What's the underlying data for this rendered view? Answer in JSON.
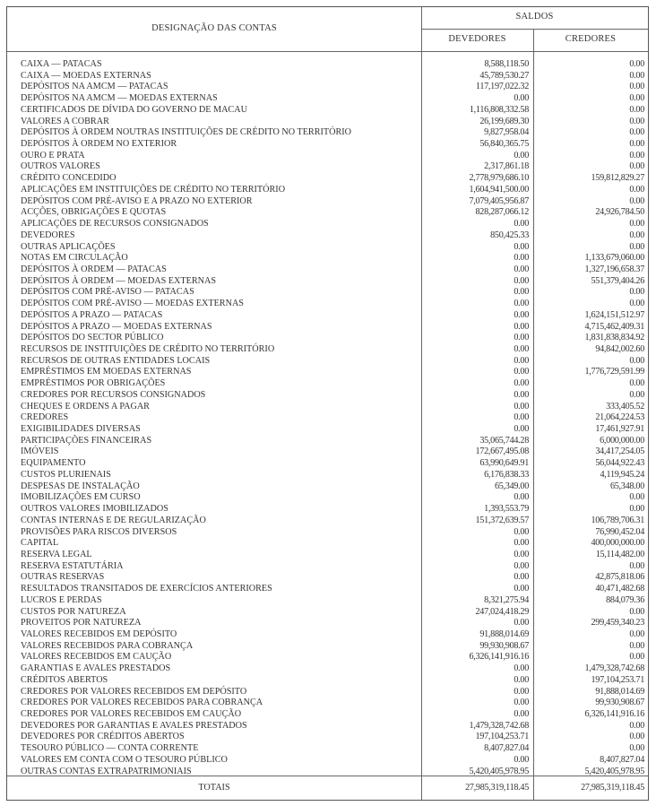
{
  "header": {
    "designation": "DESIGNAÇÃO DAS CONTAS",
    "saldos": "SALDOS",
    "devedores": "DEVEDORES",
    "credores": "CREDORES"
  },
  "rows": [
    {
      "name": "CAIXA — PATACAS",
      "dev": "8,588,118.50",
      "cre": "0.00"
    },
    {
      "name": "CAIXA — MOEDAS EXTERNAS",
      "dev": "45,789,530.27",
      "cre": "0.00"
    },
    {
      "name": "DEPÓSITOS NA AMCM — PATACAS",
      "dev": "117,197,022.32",
      "cre": "0.00"
    },
    {
      "name": "DEPÓSITOS NA AMCM — MOEDAS EXTERNAS",
      "dev": "0.00",
      "cre": "0.00"
    },
    {
      "name": "CERTIFICADOS DE DÍVIDA DO GOVERNO DE MACAU",
      "dev": "1,116,808,332.58",
      "cre": "0.00"
    },
    {
      "name": "VALORES A COBRAR",
      "dev": "26,199,689.30",
      "cre": "0.00"
    },
    {
      "name": "DEPÓSITOS À ORDEM NOUTRAS INSTITUIÇÕES DE CRÉDITO NO TERRITÓRIO",
      "dev": "9,827,958.04",
      "cre": "0.00"
    },
    {
      "name": "DEPÓSITOS À ORDEM NO EXTERIOR",
      "dev": "56,840,365.75",
      "cre": "0.00"
    },
    {
      "name": "OURO E PRATA",
      "dev": "0.00",
      "cre": "0.00"
    },
    {
      "name": "OUTROS VALORES",
      "dev": "2,317,861.18",
      "cre": "0.00"
    },
    {
      "name": "CRÉDITO CONCEDIDO",
      "dev": "2,778,979,686.10",
      "cre": "159,812,829.27"
    },
    {
      "name": "APLICAÇÕES EM INSTITUIÇÕES DE CRÉDITO NO TERRITÓRIO",
      "dev": "1,604,941,500.00",
      "cre": "0.00"
    },
    {
      "name": "DEPÓSITOS COM PRÉ-AVISO E A PRAZO NO EXTERIOR",
      "dev": "7,079,405,956.87",
      "cre": "0.00"
    },
    {
      "name": "ACÇÕES, OBRIGAÇÕES E QUOTAS",
      "dev": "828,287,066.12",
      "cre": "24,926,784.50"
    },
    {
      "name": "APLICAÇÕES DE RECURSOS CONSIGNADOS",
      "dev": "0.00",
      "cre": "0.00"
    },
    {
      "name": "DEVEDORES",
      "dev": "850,425.33",
      "cre": "0.00"
    },
    {
      "name": "OUTRAS APLICAÇÕES",
      "dev": "0.00",
      "cre": "0.00"
    },
    {
      "name": "NOTAS EM CIRCULAÇÃO",
      "dev": "0.00",
      "cre": "1,133,679,060.00"
    },
    {
      "name": "DEPÓSITOS À ORDEM — PATACAS",
      "dev": "0.00",
      "cre": "1,327,196,658.37"
    },
    {
      "name": "DEPÓSITOS À ORDEM — MOEDAS EXTERNAS",
      "dev": "0.00",
      "cre": "551,379,404.26"
    },
    {
      "name": "DEPÓSITOS COM PRÉ-AVISO — PATACAS",
      "dev": "0.00",
      "cre": "0.00"
    },
    {
      "name": "DEPÓSITOS COM PRÉ-AVISO — MOEDAS EXTERNAS",
      "dev": "0.00",
      "cre": "0.00"
    },
    {
      "name": "DEPÓSITOS A PRAZO — PATACAS",
      "dev": "0.00",
      "cre": "1,624,151,512.97"
    },
    {
      "name": "DEPÓSITOS A PRAZO — MOEDAS EXTERNAS",
      "dev": "0.00",
      "cre": "4,715,462,409.31"
    },
    {
      "name": "DEPÓSITOS DO SECTOR PÚBLICO",
      "dev": "0.00",
      "cre": "1,831,838,834.92"
    },
    {
      "name": "RECURSOS DE INSTITUIÇÕES DE CRÉDITO NO TERRITÓRIO",
      "dev": "0.00",
      "cre": "94,842,002.60"
    },
    {
      "name": "RECURSOS DE OUTRAS ENTIDADES LOCAIS",
      "dev": "0.00",
      "cre": "0.00"
    },
    {
      "name": "EMPRÉSTIMOS EM MOEDAS EXTERNAS",
      "dev": "0.00",
      "cre": "1,776,729,591.99"
    },
    {
      "name": "EMPRÉSTIMOS POR OBRIGAÇÕES",
      "dev": "0.00",
      "cre": "0.00"
    },
    {
      "name": "CREDORES POR RECURSOS CONSIGNADOS",
      "dev": "0.00",
      "cre": "0.00"
    },
    {
      "name": "CHEQUES E ORDENS A PAGAR",
      "dev": "0.00",
      "cre": "333,405.52"
    },
    {
      "name": "CREDORES",
      "dev": "0.00",
      "cre": "21,064,224.53"
    },
    {
      "name": "EXIGIBILIDADES DIVERSAS",
      "dev": "0.00",
      "cre": "17,461,927.91"
    },
    {
      "name": "PARTICIPAÇÕES FINANCEIRAS",
      "dev": "35,065,744.28",
      "cre": "6,000,000.00"
    },
    {
      "name": "IMÓVEIS",
      "dev": "172,667,495.08",
      "cre": "34,417,254.05"
    },
    {
      "name": "EQUIPAMENTO",
      "dev": "63,990,649.91",
      "cre": "56,044,922.43"
    },
    {
      "name": "CUSTOS PLURIENAIS",
      "dev": "6,176,838.33",
      "cre": "4,119,945.24"
    },
    {
      "name": "DESPESAS DE INSTALAÇÃO",
      "dev": "65,349.00",
      "cre": "65,348.00"
    },
    {
      "name": "IMOBILIZAÇÕES EM CURSO",
      "dev": "0.00",
      "cre": "0.00"
    },
    {
      "name": "OUTROS VALORES IMOBILIZADOS",
      "dev": "1,393,553.79",
      "cre": "0.00"
    },
    {
      "name": "CONTAS INTERNAS E DE REGULARIZAÇÃO",
      "dev": "151,372,639.57",
      "cre": "106,789,706.31"
    },
    {
      "name": "PROVISÕES PARA RISCOS DIVERSOS",
      "dev": "0.00",
      "cre": "76,990,452.04"
    },
    {
      "name": "CAPITAL",
      "dev": "0.00",
      "cre": "400,000,000.00"
    },
    {
      "name": "RESERVA LEGAL",
      "dev": "0.00",
      "cre": "15,114,482.00"
    },
    {
      "name": "RESERVA ESTATUTÁRIA",
      "dev": "0.00",
      "cre": "0.00"
    },
    {
      "name": "OUTRAS RESERVAS",
      "dev": "0.00",
      "cre": "42,875,818.06"
    },
    {
      "name": "RESULTADOS TRANSITADOS DE EXERCÍCIOS ANTERIORES",
      "dev": "0.00",
      "cre": "40,471,482.68"
    },
    {
      "name": "LUCROS E PERDAS",
      "dev": "8,321,275.94",
      "cre": "884,079.36"
    },
    {
      "name": "CUSTOS POR NATUREZA",
      "dev": "247,024,418.29",
      "cre": "0.00"
    },
    {
      "name": "PROVEITOS POR NATUREZA",
      "dev": "0.00",
      "cre": "299,459,340.23"
    },
    {
      "name": "VALORES RECEBIDOS EM DEPÓSITO",
      "dev": "91,888,014.69",
      "cre": "0.00"
    },
    {
      "name": "VALORES RECEBIDOS PARA COBRANÇA",
      "dev": "99,930,908.67",
      "cre": "0.00"
    },
    {
      "name": "VALORES RECEBIDOS EM CAUÇÃO",
      "dev": "6,326,141,916.16",
      "cre": "0.00"
    },
    {
      "name": "GARANTIAS E AVALES PRESTADOS",
      "dev": "0.00",
      "cre": "1,479,328,742.68"
    },
    {
      "name": "CRÉDITOS ABERTOS",
      "dev": "0.00",
      "cre": "197,104,253.71"
    },
    {
      "name": "CREDORES POR VALORES RECEBIDOS EM DEPÓSITO",
      "dev": "0.00",
      "cre": "91,888,014.69"
    },
    {
      "name": "CREDORES POR VALORES RECEBIDOS PARA COBRANÇA",
      "dev": "0.00",
      "cre": "99,930,908.67"
    },
    {
      "name": "CREDORES POR VALORES RECEBIDOS EM CAUÇÃO",
      "dev": "0.00",
      "cre": "6,326,141,916.16"
    },
    {
      "name": "DEVEDORES POR GARANTIAS E AVALES PRESTADOS",
      "dev": "1,479,328,742.68",
      "cre": "0.00"
    },
    {
      "name": "DEVEDORES POR CRÉDITOS ABERTOS",
      "dev": "197,104,253.71",
      "cre": "0.00"
    },
    {
      "name": "TESOURO PÚBLICO — CONTA CORRENTE",
      "dev": "8,407,827.04",
      "cre": "0.00"
    },
    {
      "name": "VALORES EM CONTA COM O TESOURO PÚBLICO",
      "dev": "0.00",
      "cre": "8,407,827.04"
    },
    {
      "name": "OUTRAS CONTAS EXTRAPATRIMONIAIS",
      "dev": "5,420,405,978.95",
      "cre": "5,420,405,978.95"
    }
  ],
  "totals": {
    "label": "TOTAIS",
    "dev": "27,985,319,118.45",
    "cre": "27,985,319,118.45"
  }
}
